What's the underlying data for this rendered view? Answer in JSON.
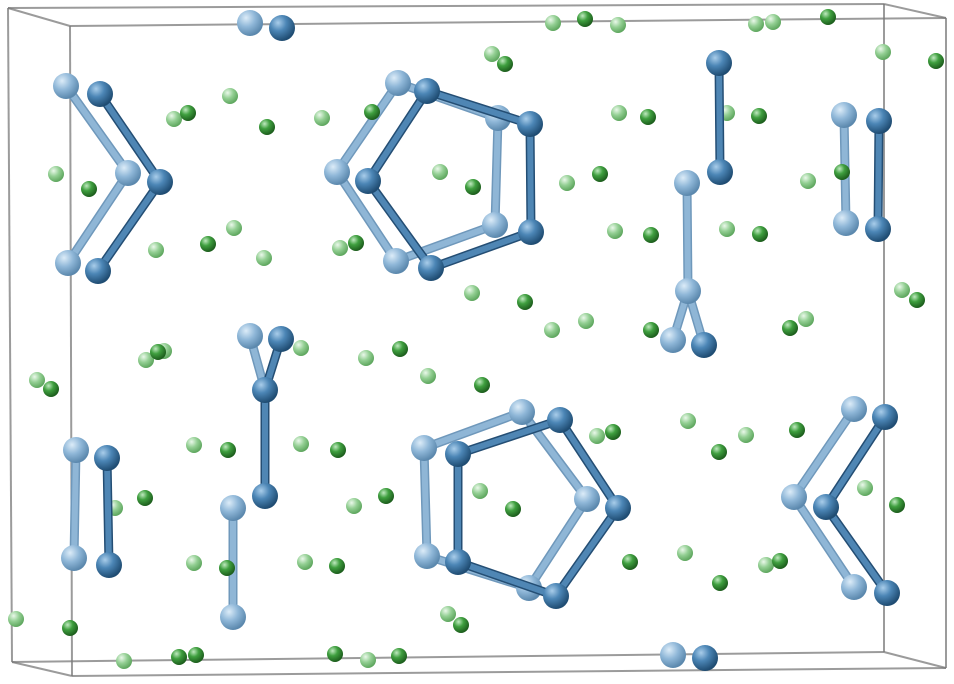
{
  "title": "",
  "colors": {
    "background": "#ffffff",
    "cell_edge": "#7a7a7a",
    "blue_front": "#3f76a3",
    "blue_back": "#86aed0",
    "bond_front": "#4f86b4",
    "bond_back": "#8fb6d6",
    "green_front": "#3a9a3a",
    "green_back": "#86c986"
  },
  "legend": []
}
